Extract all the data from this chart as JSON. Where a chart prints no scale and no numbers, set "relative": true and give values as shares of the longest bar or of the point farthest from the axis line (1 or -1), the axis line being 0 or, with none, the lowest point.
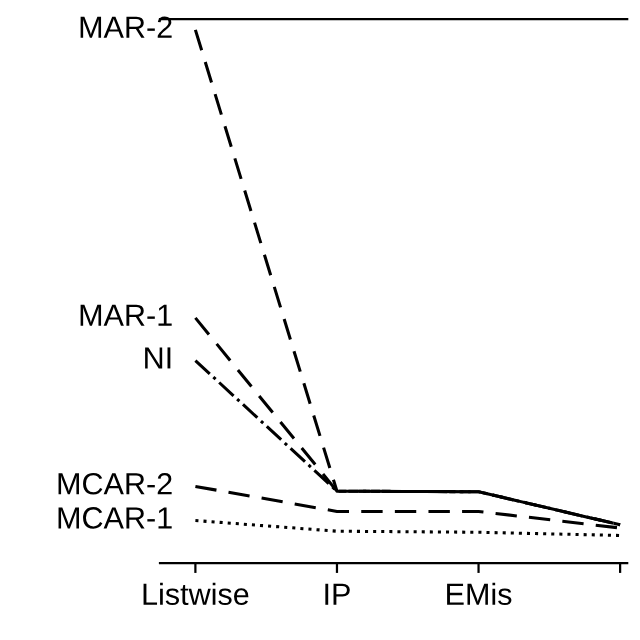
{
  "chart_data": {
    "type": "line",
    "relative": true,
    "categories": [
      "Listwise",
      "IP",
      "EMis",
      null
    ],
    "series": [
      {
        "name": "MAR-2",
        "color": "#000000",
        "line_style": "dashed",
        "values": [
          1,
          0.135,
          0.134,
          0.072
        ]
      },
      {
        "name": "MAR-1",
        "color": "#000000",
        "line_style": "dashed",
        "values": [
          0.46,
          0.135,
          0.134,
          0.072
        ]
      },
      {
        "name": "NI",
        "color": "#000000",
        "line_style": "dashdot",
        "values": [
          0.38,
          0.135,
          0.134,
          0.072
        ]
      },
      {
        "name": "MCAR-2",
        "color": "#000000",
        "line_style": "dashed",
        "values": [
          0.144,
          0.097,
          0.097,
          0.066
        ]
      },
      {
        "name": "MCAR-1",
        "color": "#000000",
        "line_style": "dotted",
        "values": [
          0.08,
          0.06,
          0.058,
          0.052
        ]
      }
    ],
    "marker": "none",
    "grid": false,
    "legend": false
  }
}
